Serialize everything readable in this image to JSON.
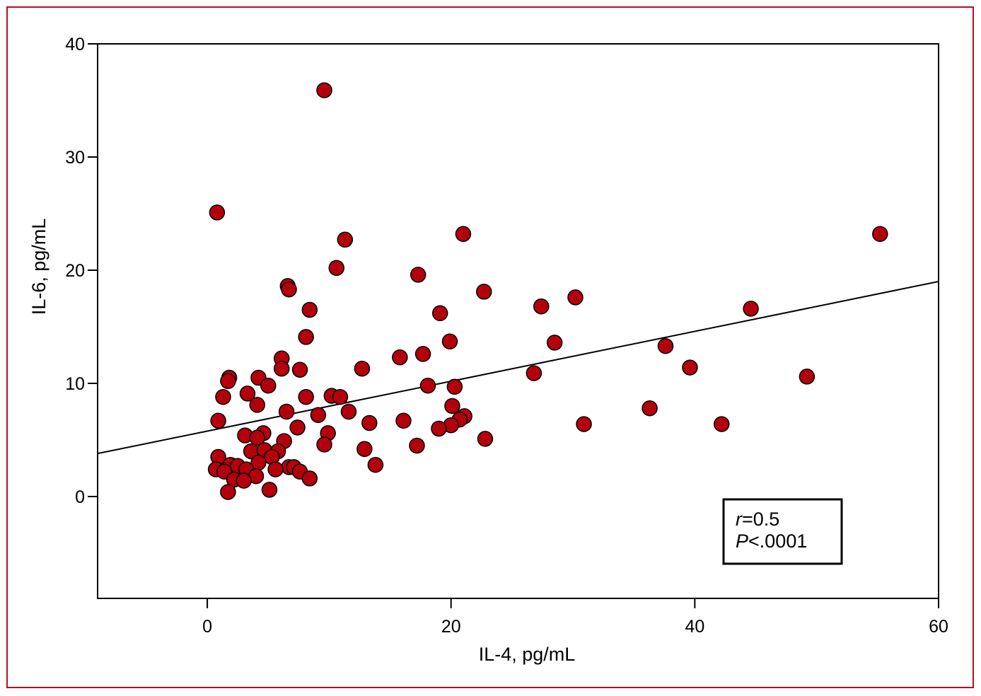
{
  "chart_data": {
    "type": "scatter",
    "xlabel": "IL-4, pg/mL",
    "ylabel": "IL-6, pg/mL",
    "xlim": [
      -9,
      60
    ],
    "ylim": [
      -9,
      40
    ],
    "xticks": [
      "0",
      "20",
      "40",
      "60"
    ],
    "yticks": [
      "0",
      "10",
      "20",
      "30",
      "40"
    ],
    "grid": false,
    "marker_color": "#b3000c",
    "annotation": {
      "r_symbol": "r",
      "r_value": "=0.5",
      "p_symbol": "P",
      "p_value": "<.0001"
    },
    "regression_line": {
      "x": [
        -9,
        60
      ],
      "y": [
        3.8,
        19.0
      ]
    },
    "points": [
      {
        "x": 9.6,
        "y": 35.9
      },
      {
        "x": 0.8,
        "y": 25.1
      },
      {
        "x": 21.0,
        "y": 23.2
      },
      {
        "x": 55.2,
        "y": 23.2
      },
      {
        "x": 11.3,
        "y": 22.7
      },
      {
        "x": 10.6,
        "y": 20.2
      },
      {
        "x": 17.3,
        "y": 19.6
      },
      {
        "x": 6.6,
        "y": 18.6
      },
      {
        "x": 6.7,
        "y": 18.3
      },
      {
        "x": 22.7,
        "y": 18.1
      },
      {
        "x": 30.2,
        "y": 17.6
      },
      {
        "x": 27.4,
        "y": 16.8
      },
      {
        "x": 44.6,
        "y": 16.6
      },
      {
        "x": 8.4,
        "y": 16.5
      },
      {
        "x": 19.1,
        "y": 16.2
      },
      {
        "x": 8.1,
        "y": 14.1
      },
      {
        "x": 19.9,
        "y": 13.7
      },
      {
        "x": 28.5,
        "y": 13.6
      },
      {
        "x": 37.6,
        "y": 13.3
      },
      {
        "x": 17.7,
        "y": 12.6
      },
      {
        "x": 15.8,
        "y": 12.3
      },
      {
        "x": 6.1,
        "y": 12.2
      },
      {
        "x": 39.6,
        "y": 11.4
      },
      {
        "x": 6.1,
        "y": 11.3
      },
      {
        "x": 12.7,
        "y": 11.3
      },
      {
        "x": 7.6,
        "y": 11.2
      },
      {
        "x": 26.8,
        "y": 10.9
      },
      {
        "x": 49.2,
        "y": 10.6
      },
      {
        "x": 1.8,
        "y": 10.5
      },
      {
        "x": 4.2,
        "y": 10.5
      },
      {
        "x": 1.7,
        "y": 10.2
      },
      {
        "x": 5.0,
        "y": 9.8
      },
      {
        "x": 18.1,
        "y": 9.8
      },
      {
        "x": 20.3,
        "y": 9.7
      },
      {
        "x": 3.3,
        "y": 9.1
      },
      {
        "x": 10.2,
        "y": 8.9
      },
      {
        "x": 10.9,
        "y": 8.8
      },
      {
        "x": 1.3,
        "y": 8.8
      },
      {
        "x": 8.1,
        "y": 8.8
      },
      {
        "x": 4.1,
        "y": 8.1
      },
      {
        "x": 20.1,
        "y": 8.0
      },
      {
        "x": 36.3,
        "y": 7.8
      },
      {
        "x": 6.5,
        "y": 7.5
      },
      {
        "x": 11.6,
        "y": 7.5
      },
      {
        "x": 9.1,
        "y": 7.2
      },
      {
        "x": 21.1,
        "y": 7.1
      },
      {
        "x": 20.7,
        "y": 6.8
      },
      {
        "x": 0.9,
        "y": 6.7
      },
      {
        "x": 16.1,
        "y": 6.7
      },
      {
        "x": 13.3,
        "y": 6.5
      },
      {
        "x": 30.9,
        "y": 6.4
      },
      {
        "x": 42.2,
        "y": 6.4
      },
      {
        "x": 20.0,
        "y": 6.3
      },
      {
        "x": 7.4,
        "y": 6.1
      },
      {
        "x": 19.0,
        "y": 6.0
      },
      {
        "x": 4.6,
        "y": 5.6
      },
      {
        "x": 9.9,
        "y": 5.6
      },
      {
        "x": 3.1,
        "y": 5.4
      },
      {
        "x": 4.1,
        "y": 5.2
      },
      {
        "x": 22.8,
        "y": 5.1
      },
      {
        "x": 6.3,
        "y": 4.9
      },
      {
        "x": 9.6,
        "y": 4.6
      },
      {
        "x": 17.2,
        "y": 4.5
      },
      {
        "x": 12.9,
        "y": 4.2
      },
      {
        "x": 3.6,
        "y": 4.0
      },
      {
        "x": 4.7,
        "y": 4.1
      },
      {
        "x": 5.8,
        "y": 4.0
      },
      {
        "x": 0.9,
        "y": 3.5
      },
      {
        "x": 5.3,
        "y": 3.5
      },
      {
        "x": 4.2,
        "y": 3.0
      },
      {
        "x": 13.8,
        "y": 2.8
      },
      {
        "x": 1.9,
        "y": 2.8
      },
      {
        "x": 2.5,
        "y": 2.7
      },
      {
        "x": 6.7,
        "y": 2.6
      },
      {
        "x": 7.1,
        "y": 2.6
      },
      {
        "x": 0.7,
        "y": 2.4
      },
      {
        "x": 3.2,
        "y": 2.4
      },
      {
        "x": 5.6,
        "y": 2.4
      },
      {
        "x": 1.4,
        "y": 2.2
      },
      {
        "x": 7.6,
        "y": 2.2
      },
      {
        "x": 4.0,
        "y": 1.8
      },
      {
        "x": 8.4,
        "y": 1.6
      },
      {
        "x": 2.2,
        "y": 1.5
      },
      {
        "x": 3.0,
        "y": 1.4
      },
      {
        "x": 5.1,
        "y": 0.6
      },
      {
        "x": 1.7,
        "y": 0.4
      }
    ]
  }
}
